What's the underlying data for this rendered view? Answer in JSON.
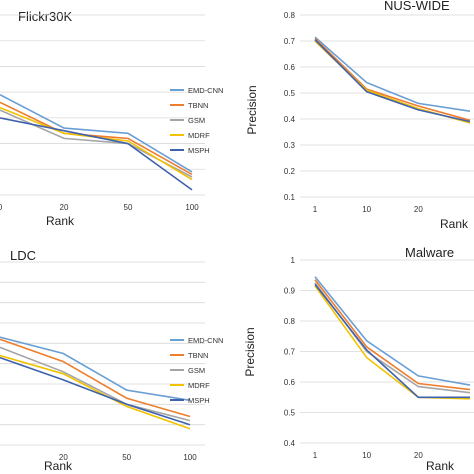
{
  "colors": {
    "EMD-CNN": "#6a9fd4",
    "TBNN": "#ef7d2e",
    "GSM": "#a5a5a5",
    "MDRF": "#f2c200",
    "MSPH": "#3f62ad"
  },
  "chart_data": [
    {
      "type": "line",
      "title": "Flickr30K",
      "xlabel": "Rank",
      "ylabel": "",
      "categories": [
        "0",
        "20",
        "50",
        "100"
      ],
      "show_ytick_labels": false,
      "ylim": [
        0.1,
        0.8
      ],
      "legend": "right",
      "series": [
        {
          "name": "EMD-CNN",
          "values": [
            0.49,
            0.36,
            0.34,
            0.19
          ]
        },
        {
          "name": "TBNN",
          "values": [
            0.46,
            0.34,
            0.32,
            0.18
          ]
        },
        {
          "name": "GSM",
          "values": [
            0.43,
            0.32,
            0.3,
            0.17
          ]
        },
        {
          "name": "MDRF",
          "values": [
            0.44,
            0.34,
            0.31,
            0.16
          ]
        },
        {
          "name": "MSPH",
          "values": [
            0.4,
            0.35,
            0.3,
            0.12
          ]
        }
      ]
    },
    {
      "type": "line",
      "title": "NUS-WIDE",
      "xlabel": "Rank",
      "ylabel": "Precision",
      "categories": [
        "1",
        "10",
        "20",
        ""
      ],
      "yticks": [
        "0.1",
        "0.2",
        "0.3",
        "0.4",
        "0.5",
        "0.6",
        "0.7",
        "0.8"
      ],
      "ylim": [
        0.1,
        0.8
      ],
      "series": [
        {
          "name": "EMD-CNN",
          "values": [
            0.715,
            0.54,
            0.46,
            0.43
          ]
        },
        {
          "name": "TBNN",
          "values": [
            0.71,
            0.515,
            0.45,
            0.395
          ]
        },
        {
          "name": "GSM",
          "values": [
            0.7,
            0.51,
            0.44,
            0.385
          ]
        },
        {
          "name": "MDRF",
          "values": [
            0.7,
            0.51,
            0.44,
            0.385
          ]
        },
        {
          "name": "MSPH",
          "values": [
            0.705,
            0.505,
            0.435,
            0.39
          ]
        }
      ]
    },
    {
      "type": "line",
      "title": "LDC",
      "xlabel": "Rank",
      "ylabel": "",
      "categories": [
        "",
        "20",
        "50",
        "100"
      ],
      "show_ytick_labels": false,
      "ylim": [
        0.1,
        1.0
      ],
      "legend": "right",
      "series": [
        {
          "name": "EMD-CNN",
          "values": [
            0.63,
            0.55,
            0.37,
            0.32
          ]
        },
        {
          "name": "TBNN",
          "values": [
            0.62,
            0.51,
            0.33,
            0.24
          ]
        },
        {
          "name": "GSM",
          "values": [
            0.58,
            0.46,
            0.3,
            0.22
          ]
        },
        {
          "name": "MDRF",
          "values": [
            0.54,
            0.45,
            0.29,
            0.18
          ]
        },
        {
          "name": "MSPH",
          "values": [
            0.53,
            0.42,
            0.3,
            0.2
          ]
        }
      ]
    },
    {
      "type": "line",
      "title": "Malware",
      "xlabel": "Rank",
      "ylabel": "Precision",
      "categories": [
        "1",
        "10",
        "20",
        ""
      ],
      "yticks": [
        "0.4",
        "0.5",
        "0.6",
        "0.7",
        "0.8",
        "0.9",
        "1"
      ],
      "ylim": [
        0.4,
        1.0
      ],
      "series": [
        {
          "name": "EMD-CNN",
          "values": [
            0.945,
            0.735,
            0.62,
            0.59
          ]
        },
        {
          "name": "TBNN",
          "values": [
            0.935,
            0.715,
            0.595,
            0.575
          ]
        },
        {
          "name": "GSM",
          "values": [
            0.925,
            0.7,
            0.585,
            0.565
          ]
        },
        {
          "name": "MDRF",
          "values": [
            0.915,
            0.68,
            0.55,
            0.545
          ]
        },
        {
          "name": "MSPH",
          "values": [
            0.92,
            0.705,
            0.55,
            0.55
          ]
        }
      ]
    }
  ]
}
